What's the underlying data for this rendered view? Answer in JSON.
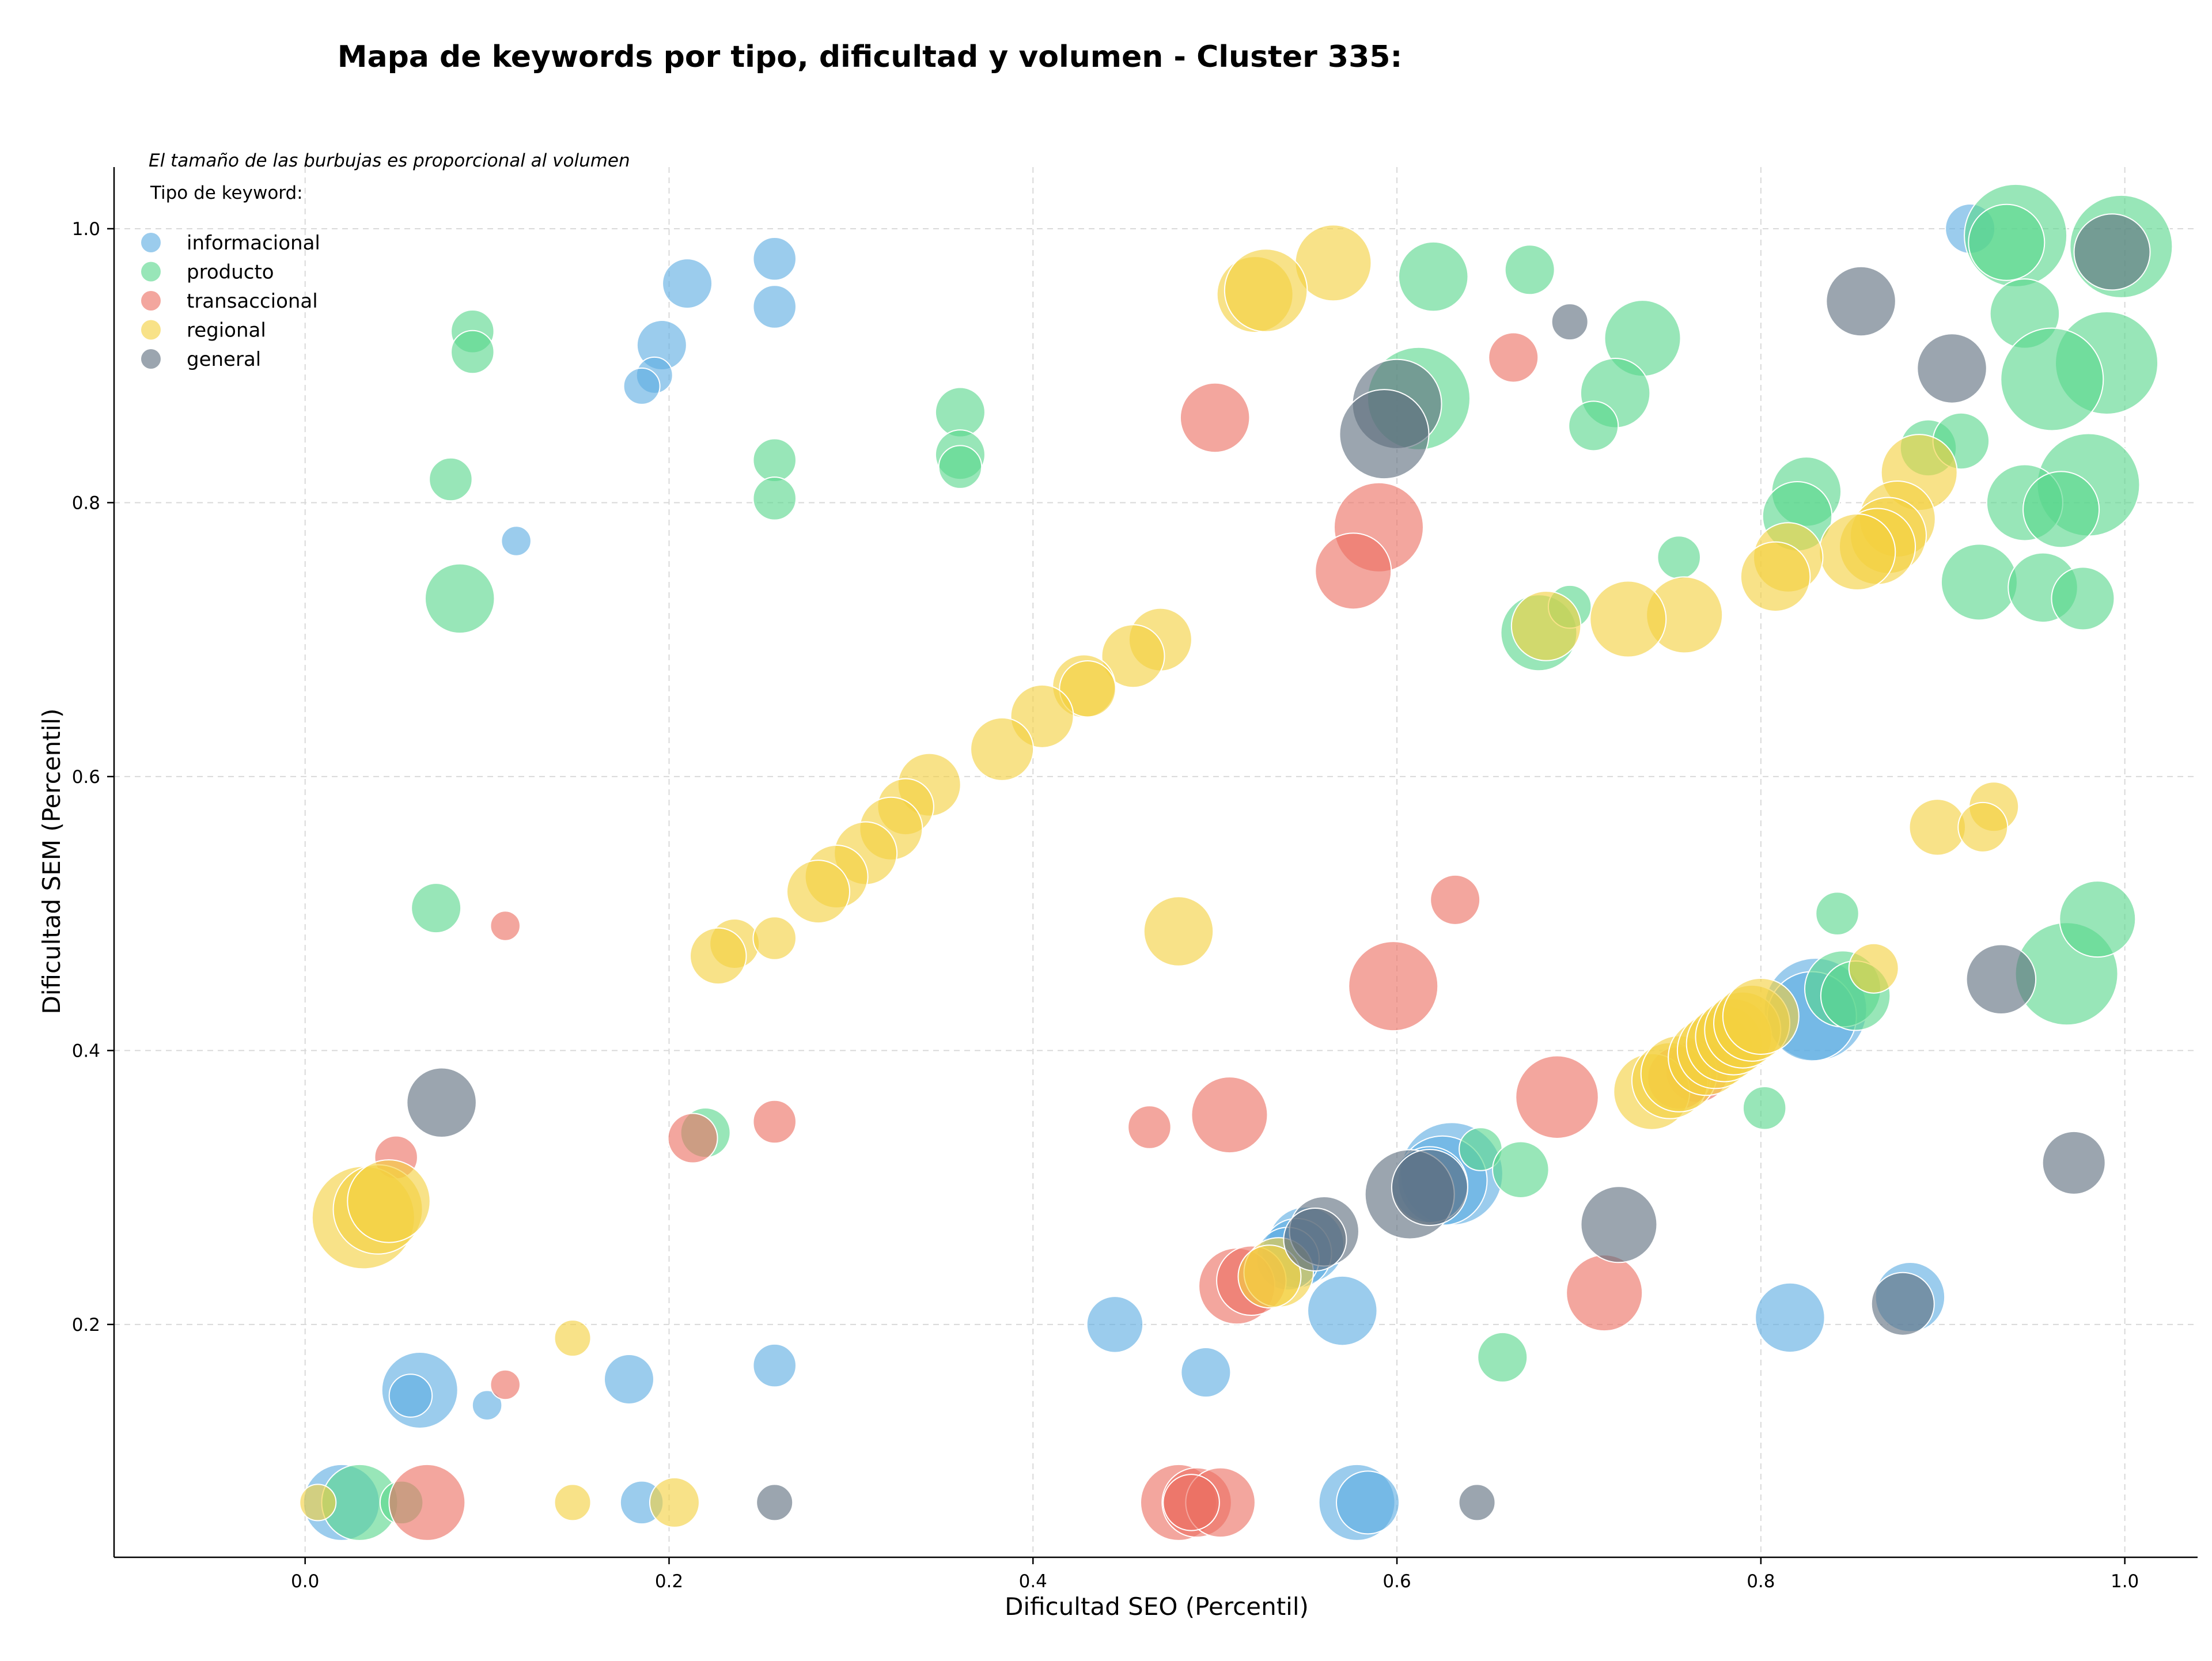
{
  "chart_data": {
    "type": "scatter",
    "title": "Mapa de keywords por tipo, dificultad y volumen - Cluster 335:",
    "xlabel": "Dificultad SEO (Percentil)",
    "ylabel": "Dificultad SEM (Percentil)",
    "xlim": [
      -0.105,
      1.04
    ],
    "ylim": [
      0.03,
      1.045
    ],
    "x_ticks": [
      0.0,
      0.2,
      0.4,
      0.6,
      0.8,
      1.0
    ],
    "x_tick_labels": [
      "0.0",
      "0.2",
      "0.4",
      "0.6",
      "0.8",
      "1.0"
    ],
    "y_ticks": [
      0.2,
      0.4,
      0.6,
      0.8,
      1.0
    ],
    "y_tick_labels": [
      "0.2",
      "0.4",
      "0.6",
      "0.8",
      "1.0"
    ],
    "grid": true,
    "legend_position": "top-left",
    "legend_title": "Tipo de keyword:",
    "annotation": "El tamaño de las burbujas es proporcional al volumen",
    "series": [
      {
        "name": "informacional",
        "color": "#5dade2",
        "points": [
          [
            0.915,
            1.0,
            2
          ],
          [
            0.21,
            0.96,
            2
          ],
          [
            0.258,
            0.978,
            1.5
          ],
          [
            0.258,
            0.943,
            1.5
          ],
          [
            0.196,
            0.915,
            2
          ],
          [
            0.192,
            0.893,
            1
          ],
          [
            0.185,
            0.885,
            1
          ],
          [
            0.116,
            0.772,
            0.5
          ],
          [
            0.258,
            0.17,
            1.5
          ],
          [
            0.178,
            0.16,
            2
          ],
          [
            0.063,
            0.152,
            4
          ],
          [
            0.058,
            0.148,
            1.5
          ],
          [
            0.1,
            0.141,
            0.5
          ],
          [
            0.02,
            0.07,
            4
          ],
          [
            0.185,
            0.07,
            1.5
          ],
          [
            0.445,
            0.2,
            2.5
          ],
          [
            0.495,
            0.165,
            2
          ],
          [
            0.57,
            0.21,
            3.5
          ],
          [
            0.578,
            0.07,
            4
          ],
          [
            0.584,
            0.07,
            3
          ],
          [
            0.816,
            0.205,
            3.5
          ],
          [
            0.882,
            0.22,
            3.5
          ],
          [
            0.83,
            0.43,
            6
          ],
          [
            0.828,
            0.425,
            5
          ],
          [
            0.63,
            0.31,
            6
          ],
          [
            0.625,
            0.305,
            5
          ],
          [
            0.618,
            0.302,
            4
          ],
          [
            0.55,
            0.258,
            4
          ],
          [
            0.545,
            0.252,
            3.5
          ],
          [
            0.54,
            0.248,
            3
          ]
        ]
      },
      {
        "name": "producto",
        "color": "#58d68d",
        "points": [
          [
            0.94,
            0.995,
            6
          ],
          [
            0.935,
            0.99,
            4
          ],
          [
            0.998,
            0.987,
            6
          ],
          [
            0.62,
            0.965,
            3.5
          ],
          [
            0.673,
            0.97,
            2
          ],
          [
            0.092,
            0.925,
            1.5
          ],
          [
            0.092,
            0.91,
            1.5
          ],
          [
            0.735,
            0.92,
            4
          ],
          [
            0.945,
            0.938,
            3.5
          ],
          [
            0.99,
            0.902,
            6
          ],
          [
            0.96,
            0.89,
            6
          ],
          [
            0.612,
            0.876,
            6
          ],
          [
            0.72,
            0.88,
            3.5
          ],
          [
            0.708,
            0.856,
            2
          ],
          [
            0.36,
            0.866,
            2
          ],
          [
            0.258,
            0.831,
            1.5
          ],
          [
            0.36,
            0.835,
            2
          ],
          [
            0.36,
            0.826,
            1.5
          ],
          [
            0.258,
            0.803,
            1.5
          ],
          [
            0.08,
            0.817,
            1.5
          ],
          [
            0.825,
            0.808,
            3.5
          ],
          [
            0.82,
            0.79,
            3.5
          ],
          [
            0.892,
            0.84,
            2.5
          ],
          [
            0.91,
            0.845,
            2.5
          ],
          [
            0.98,
            0.813,
            6
          ],
          [
            0.945,
            0.8,
            4
          ],
          [
            0.965,
            0.795,
            4
          ],
          [
            0.755,
            0.76,
            1.5
          ],
          [
            0.92,
            0.742,
            4
          ],
          [
            0.955,
            0.738,
            3.5
          ],
          [
            0.977,
            0.73,
            3
          ],
          [
            0.085,
            0.73,
            3.5
          ],
          [
            0.678,
            0.705,
            4
          ],
          [
            0.695,
            0.724,
            1.5
          ],
          [
            0.072,
            0.504,
            2
          ],
          [
            0.22,
            0.34,
            2
          ],
          [
            0.842,
            0.5,
            1.5
          ],
          [
            0.845,
            0.445,
            4
          ],
          [
            0.852,
            0.44,
            3.5
          ],
          [
            0.802,
            0.358,
            1.5
          ],
          [
            0.646,
            0.328,
            1.5
          ],
          [
            0.668,
            0.313,
            2.5
          ],
          [
            0.658,
            0.176,
            2
          ],
          [
            0.03,
            0.07,
            4
          ],
          [
            0.053,
            0.07,
            1.5
          ],
          [
            0.968,
            0.456,
            6
          ],
          [
            0.985,
            0.496,
            4
          ]
        ]
      },
      {
        "name": "transaccional",
        "color": "#ec7063",
        "points": [
          [
            0.5,
            0.862,
            3.5
          ],
          [
            0.664,
            0.906,
            2
          ],
          [
            0.59,
            0.782,
            5
          ],
          [
            0.576,
            0.75,
            4
          ],
          [
            0.632,
            0.51,
            2
          ],
          [
            0.11,
            0.491,
            0.5
          ],
          [
            0.598,
            0.447,
            5
          ],
          [
            0.688,
            0.366,
            4.5
          ],
          [
            0.508,
            0.353,
            4
          ],
          [
            0.464,
            0.344,
            1.5
          ],
          [
            0.258,
            0.348,
            1.5
          ],
          [
            0.213,
            0.336,
            2
          ],
          [
            0.05,
            0.322,
            1.5
          ],
          [
            0.11,
            0.156,
            0.5
          ],
          [
            0.067,
            0.07,
            4
          ],
          [
            0.714,
            0.223,
            4
          ],
          [
            0.512,
            0.228,
            4
          ],
          [
            0.52,
            0.232,
            3.5
          ],
          [
            0.48,
            0.07,
            4
          ],
          [
            0.49,
            0.07,
            3.5
          ],
          [
            0.503,
            0.07,
            3.5
          ],
          [
            0.487,
            0.07,
            2.5
          ],
          [
            0.765,
            0.385,
            3
          ],
          [
            0.755,
            0.38,
            3
          ]
        ]
      },
      {
        "name": "regional",
        "color": "#f4d03f",
        "points": [
          [
            0.565,
            0.975,
            4
          ],
          [
            0.522,
            0.952,
            4
          ],
          [
            0.528,
            0.955,
            4.5
          ],
          [
            0.47,
            0.7,
            3
          ],
          [
            0.455,
            0.688,
            3
          ],
          [
            0.428,
            0.666,
            3
          ],
          [
            0.43,
            0.664,
            2.5
          ],
          [
            0.405,
            0.644,
            3
          ],
          [
            0.383,
            0.62,
            3
          ],
          [
            0.343,
            0.594,
            3
          ],
          [
            0.33,
            0.578,
            2.5
          ],
          [
            0.322,
            0.562,
            3
          ],
          [
            0.308,
            0.544,
            3
          ],
          [
            0.292,
            0.527,
            3
          ],
          [
            0.282,
            0.516,
            3
          ],
          [
            0.236,
            0.478,
            2
          ],
          [
            0.258,
            0.482,
            1.5
          ],
          [
            0.227,
            0.469,
            2.5
          ],
          [
            0.48,
            0.487,
            3.5
          ],
          [
            0.032,
            0.278,
            6
          ],
          [
            0.04,
            0.284,
            5
          ],
          [
            0.046,
            0.29,
            4.5
          ],
          [
            0.147,
            0.19,
            1
          ],
          [
            0.147,
            0.07,
            1
          ],
          [
            0.203,
            0.07,
            2
          ],
          [
            0.007,
            0.07,
            1
          ],
          [
            0.862,
            0.46,
            2
          ],
          [
            0.897,
            0.563,
            2.5
          ],
          [
            0.928,
            0.578,
            2
          ],
          [
            0.922,
            0.563,
            2
          ],
          [
            0.887,
            0.822,
            4
          ],
          [
            0.875,
            0.788,
            4
          ],
          [
            0.87,
            0.776,
            4
          ],
          [
            0.864,
            0.768,
            4
          ],
          [
            0.853,
            0.764,
            4
          ],
          [
            0.815,
            0.76,
            3.5
          ],
          [
            0.808,
            0.746,
            3.5
          ],
          [
            0.758,
            0.718,
            4
          ],
          [
            0.727,
            0.715,
            4
          ],
          [
            0.682,
            0.71,
            3.5
          ],
          [
            0.535,
            0.238,
            3.5
          ],
          [
            0.53,
            0.235,
            3
          ],
          [
            0.74,
            0.37,
            4
          ],
          [
            0.75,
            0.378,
            4
          ],
          [
            0.755,
            0.383,
            4
          ],
          [
            0.77,
            0.395,
            4
          ],
          [
            0.775,
            0.4,
            4
          ],
          [
            0.78,
            0.405,
            4
          ],
          [
            0.785,
            0.41,
            4
          ],
          [
            0.79,
            0.415,
            4
          ],
          [
            0.795,
            0.42,
            4
          ],
          [
            0.8,
            0.425,
            4
          ]
        ]
      },
      {
        "name": "general",
        "color": "#5d6d7e",
        "points": [
          [
            0.993,
            0.983,
            4
          ],
          [
            0.855,
            0.947,
            3.5
          ],
          [
            0.695,
            0.932,
            1
          ],
          [
            0.905,
            0.898,
            3.5
          ],
          [
            0.6,
            0.872,
            5
          ],
          [
            0.593,
            0.85,
            5
          ],
          [
            0.075,
            0.362,
            3.5
          ],
          [
            0.932,
            0.452,
            3.5
          ],
          [
            0.972,
            0.318,
            3
          ],
          [
            0.722,
            0.273,
            4
          ],
          [
            0.607,
            0.295,
            5
          ],
          [
            0.618,
            0.3,
            4
          ],
          [
            0.56,
            0.268,
            3.5
          ],
          [
            0.555,
            0.262,
            3
          ],
          [
            0.878,
            0.215,
            3
          ],
          [
            0.258,
            0.07,
            1
          ],
          [
            0.644,
            0.07,
            1
          ]
        ]
      }
    ]
  }
}
